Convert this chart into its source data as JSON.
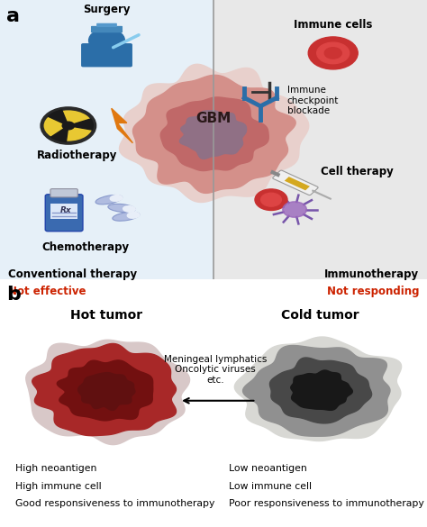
{
  "bg_color": "#ffffff",
  "panel_a_left_bg": "#e6f0f8",
  "panel_a_right_bg": "#e8e8e8",
  "divider_color": "#999999",
  "label_a": "a",
  "label_b": "b",
  "label_fontsize": 16,
  "surgery_label": "Surgery",
  "radiotherapy_label": "Radiotherapy",
  "chemotherapy_label": "Chemotherapy",
  "gbm_label": "GBM",
  "immune_cells_label": "Immune cells",
  "checkpoint_label": "Immune\ncheckpoint\nblockade",
  "cell_therapy_label": "Cell therapy",
  "conventional_label": "Conventional therapy",
  "not_effective_label": "Not effective",
  "immuno_label": "Immunotherapy",
  "not_responding_label": "Not responding",
  "hot_tumor_label": "Hot tumor",
  "cold_tumor_label": "Cold tumor",
  "meningeal_label": "Meningeal lymphatics\nOncolytic viruses\netc.",
  "hot_annotations": [
    "High neoantigen",
    "High immune cell",
    "Good responsiveness to immunotherapy"
  ],
  "cold_annotations": [
    "Low neoantigen",
    "Low immune cell",
    "Poor responsiveness to immunotherapy"
  ],
  "red_color": "#cc2200",
  "doctor_color": "#2b6ea8",
  "radiation_yellow": "#e8c832",
  "lightning_color": "#e07810",
  "pill_bottle_color": "#3a6ab0",
  "immune_cell_color": "#c83030",
  "checkpoint_color": "#2b6ea8",
  "gbm_glow_color": "#e8d0cc",
  "gbm_outer_color": "#d4908a",
  "gbm_mid_color": "#c06868",
  "gbm_inner_color": "#907085",
  "hot_glow_color": "#d8c8c8",
  "hot_outer_color": "#a82828",
  "hot_mid_color": "#881818",
  "hot_inner_color": "#601010",
  "cold_glow_color": "#d8d8d4",
  "cold_outer_color": "#909090",
  "cold_mid_color": "#484848",
  "cold_inner_color": "#181818"
}
